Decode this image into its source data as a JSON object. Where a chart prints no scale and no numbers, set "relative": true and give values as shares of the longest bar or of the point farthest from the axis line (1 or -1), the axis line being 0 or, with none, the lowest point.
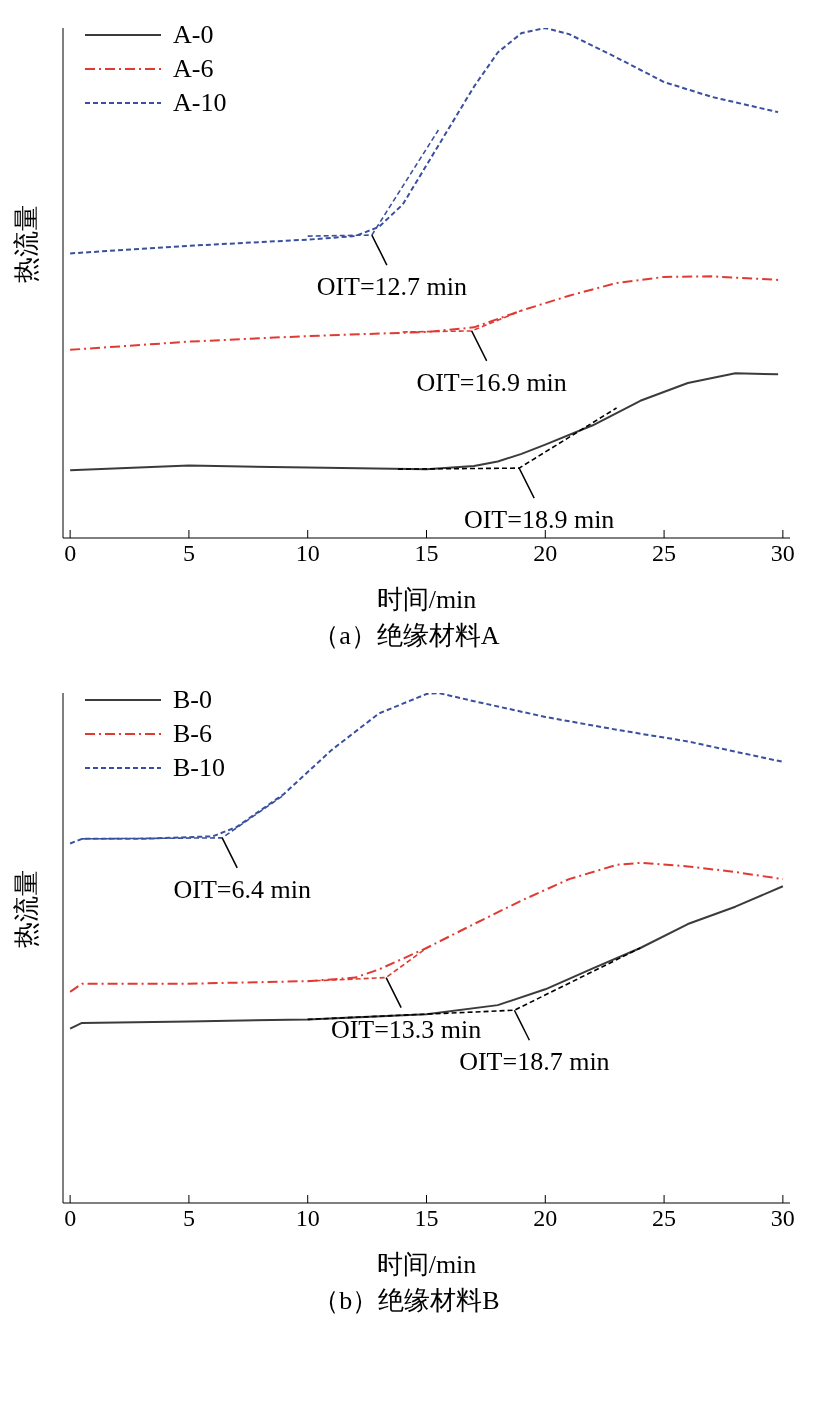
{
  "chart_data": [
    {
      "type": "line",
      "title": "（a）绝缘材料A",
      "xlabel": "时间/min",
      "ylabel": "热流量",
      "relative": true,
      "xlim": [
        -0.3,
        30.3
      ],
      "xticks": [
        0,
        5,
        10,
        15,
        20,
        25,
        30
      ],
      "legend": "top left",
      "grid": false,
      "marker": "none",
      "series": [
        {
          "name": "A-0",
          "color": "#3d3a3a",
          "line_style": "solid",
          "x": [
            0,
            5,
            10,
            15,
            17,
            18,
            19,
            20,
            22,
            24,
            26,
            28,
            29.8
          ],
          "values": [
            0.133,
            0.142,
            0.138,
            0.135,
            0.141,
            0.15,
            0.165,
            0.183,
            0.221,
            0.269,
            0.304,
            0.323,
            0.321
          ]
        },
        {
          "name": "A-6",
          "color": "#e03a34",
          "line_style": "dashdot",
          "x": [
            0,
            5,
            10,
            15,
            17,
            19,
            21,
            23,
            25,
            27,
            29.8
          ],
          "values": [
            0.369,
            0.385,
            0.396,
            0.404,
            0.413,
            0.446,
            0.475,
            0.5,
            0.512,
            0.513,
            0.506
          ]
        },
        {
          "name": "A-10",
          "color": "#3a4f9e",
          "line_style": "dashed",
          "x": [
            0,
            5,
            10,
            12,
            13,
            14,
            15,
            16,
            17,
            18,
            19,
            20,
            21,
            23,
            25,
            27,
            29.8
          ],
          "values": [
            0.558,
            0.573,
            0.585,
            0.592,
            0.61,
            0.654,
            0.731,
            0.808,
            0.885,
            0.952,
            0.99,
            1,
            0.988,
            0.942,
            0.894,
            0.865,
            0.835
          ]
        },
        {
          "color": "#000000",
          "line_style": "dashed",
          "x": [
            13.8,
            18.9,
            23
          ],
          "values": [
            0.135,
            0.137,
            0.255
          ]
        },
        {
          "color": "#e03a34",
          "line_style": "dashed",
          "x": [
            14,
            16.9,
            19
          ],
          "values": [
            0.404,
            0.406,
            0.446
          ]
        },
        {
          "color": "#3a4f9e",
          "line_style": "dashed",
          "x": [
            10,
            12.7,
            15.5
          ],
          "values": [
            0.592,
            0.594,
            0.8
          ]
        }
      ],
      "annotations": [
        {
          "text": "OIT=18.9 min",
          "x": 18.9,
          "y": 0.137
        },
        {
          "text": "OIT=16.9 min",
          "x": 16.9,
          "y": 0.406
        },
        {
          "text": "OIT=12.7 min",
          "x": 12.7,
          "y": 0.594
        }
      ]
    },
    {
      "type": "line",
      "title": "（b）绝缘材料B",
      "xlabel": "时间/min",
      "ylabel": "热流量",
      "relative": true,
      "xlim": [
        -0.3,
        30.3
      ],
      "xticks": [
        0,
        5,
        10,
        15,
        20,
        25,
        30
      ],
      "legend": "top left",
      "grid": false,
      "marker": "none",
      "series": [
        {
          "name": "B-0",
          "color": "#3d3a3a",
          "line_style": "solid",
          "x": [
            0,
            0.5,
            5,
            10,
            15,
            18,
            20,
            22,
            24,
            26,
            28,
            30
          ],
          "values": [
            0.342,
            0.353,
            0.356,
            0.36,
            0.37,
            0.388,
            0.419,
            0.46,
            0.5,
            0.547,
            0.581,
            0.621
          ]
        },
        {
          "name": "B-6",
          "color": "#e03a34",
          "line_style": "dashdot",
          "x": [
            0,
            0.5,
            5,
            10,
            12,
            13,
            15,
            17,
            19,
            21,
            23,
            24,
            26,
            28,
            30
          ],
          "values": [
            0.414,
            0.43,
            0.43,
            0.435,
            0.442,
            0.458,
            0.5,
            0.547,
            0.593,
            0.635,
            0.663,
            0.667,
            0.66,
            0.649,
            0.635
          ]
        },
        {
          "name": "B-10",
          "color": "#3a4f9e",
          "line_style": "dashed",
          "x": [
            0,
            0.5,
            3,
            6,
            7,
            9,
            11,
            13,
            15,
            15.5,
            17,
            20,
            23,
            26,
            30
          ],
          "values": [
            0.705,
            0.714,
            0.714,
            0.719,
            0.737,
            0.802,
            0.888,
            0.96,
            0.998,
            1,
            0.984,
            0.953,
            0.928,
            0.905,
            0.865
          ]
        },
        {
          "color": "#000000",
          "line_style": "dashed",
          "x": [
            10,
            18.7,
            24
          ],
          "values": [
            0.36,
            0.378,
            0.5
          ]
        },
        {
          "color": "#e03a34",
          "line_style": "dashed",
          "x": [
            10,
            13.3,
            15
          ],
          "values": [
            0.435,
            0.442,
            0.5
          ]
        },
        {
          "color": "#3a4f9e",
          "line_style": "dashed",
          "x": [
            0.5,
            6.4,
            9
          ],
          "values": [
            0.714,
            0.716,
            0.8
          ]
        }
      ],
      "annotations": [
        {
          "text": "OIT=18.7 min",
          "x": 18.7,
          "y": 0.378
        },
        {
          "text": "OIT=13.3 min",
          "x": 13.3,
          "y": 0.442
        },
        {
          "text": "OIT=6.4 min",
          "x": 6.4,
          "y": 0.716
        }
      ]
    }
  ]
}
